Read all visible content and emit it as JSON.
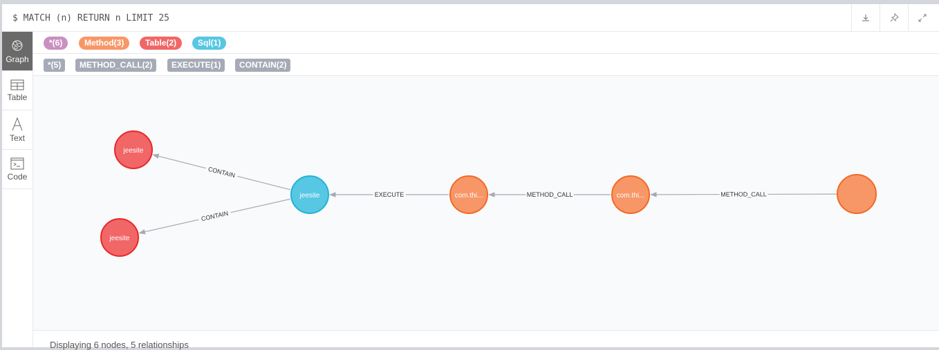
{
  "header": {
    "query": "$ MATCH (n) RETURN n LIMIT 25",
    "buttons": [
      "download-icon",
      "pin-icon",
      "expand-icon"
    ]
  },
  "sidebar": {
    "items": [
      {
        "label": "Graph",
        "icon": "graph-icon",
        "active": true
      },
      {
        "label": "Table",
        "icon": "table-icon"
      },
      {
        "label": "Text",
        "icon": "text-icon"
      },
      {
        "label": "Code",
        "icon": "code-icon"
      }
    ]
  },
  "node_labels": [
    {
      "label": "*(6)",
      "color": "#c990c0"
    },
    {
      "label": "Method(3)",
      "color": "#f79767"
    },
    {
      "label": "Table(2)",
      "color": "#f16667"
    },
    {
      "label": "Sql(1)",
      "color": "#57c7e3"
    }
  ],
  "rel_types": [
    {
      "label": "*(5)"
    },
    {
      "label": "METHOD_CALL(2)"
    },
    {
      "label": "EXECUTE(1)"
    },
    {
      "label": "CONTAIN(2)"
    }
  ],
  "graph": {
    "nodes": [
      {
        "id": "t1",
        "caption": "jeesite",
        "type": "Table",
        "fill": "#f16667",
        "stroke": "#eb2728"
      },
      {
        "id": "t2",
        "caption": "jeesite",
        "type": "Table",
        "fill": "#f16667",
        "stroke": "#eb2728"
      },
      {
        "id": "s1",
        "caption": "jeesite",
        "type": "Sql",
        "fill": "#57c7e3",
        "stroke": "#23b3d7"
      },
      {
        "id": "m1",
        "caption": "com.thi...",
        "type": "Method",
        "fill": "#f79767",
        "stroke": "#f36924"
      },
      {
        "id": "m2",
        "caption": "com.thi...",
        "type": "Method",
        "fill": "#f79767",
        "stroke": "#f36924"
      },
      {
        "id": "m3",
        "caption": "",
        "type": "Method",
        "fill": "#f79767",
        "stroke": "#f36924"
      }
    ],
    "relationships": [
      {
        "from": "s1",
        "to": "t1",
        "type": "CONTAIN"
      },
      {
        "from": "s1",
        "to": "t2",
        "type": "CONTAIN"
      },
      {
        "from": "m1",
        "to": "s1",
        "type": "EXECUTE"
      },
      {
        "from": "m2",
        "to": "m1",
        "type": "METHOD_CALL"
      },
      {
        "from": "m3",
        "to": "m2",
        "type": "METHOD_CALL"
      }
    ]
  },
  "footer": {
    "status": "Displaying 6 nodes, 5 relationships"
  }
}
